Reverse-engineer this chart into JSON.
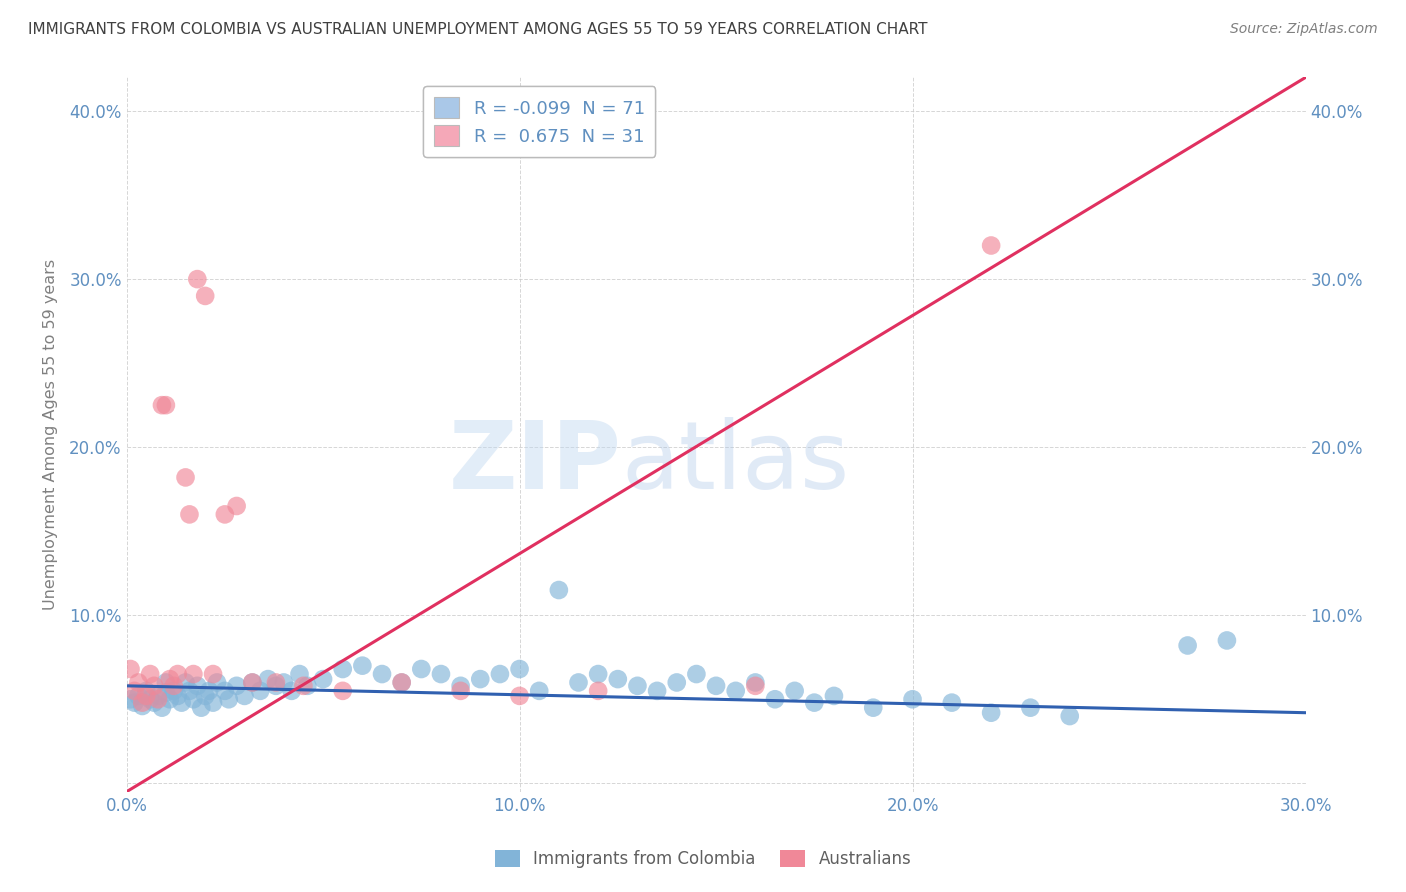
{
  "title": "IMMIGRANTS FROM COLOMBIA VS AUSTRALIAN UNEMPLOYMENT AMONG AGES 55 TO 59 YEARS CORRELATION CHART",
  "source": "Source: ZipAtlas.com",
  "ylabel": "Unemployment Among Ages 55 to 59 years",
  "xlim": [
    0.0,
    0.3
  ],
  "ylim": [
    -0.005,
    0.42
  ],
  "xtick_vals": [
    0.0,
    0.1,
    0.2,
    0.3
  ],
  "ytick_vals": [
    0.0,
    0.1,
    0.2,
    0.3,
    0.4
  ],
  "legend": [
    {
      "label": "R = -0.099  N = 71",
      "color": "#aac8e8"
    },
    {
      "label": "R =  0.675  N = 31",
      "color": "#f5a8b8"
    }
  ],
  "bottom_legend": [
    {
      "label": "Immigrants from Colombia",
      "color": "#82b4d8"
    },
    {
      "label": "Australians",
      "color": "#f08898"
    }
  ],
  "blue_scatter_x": [
    0.001,
    0.002,
    0.003,
    0.004,
    0.005,
    0.006,
    0.007,
    0.008,
    0.009,
    0.01,
    0.01,
    0.011,
    0.012,
    0.013,
    0.014,
    0.015,
    0.016,
    0.017,
    0.018,
    0.019,
    0.02,
    0.021,
    0.022,
    0.023,
    0.025,
    0.026,
    0.028,
    0.03,
    0.032,
    0.034,
    0.036,
    0.038,
    0.04,
    0.042,
    0.044,
    0.046,
    0.05,
    0.055,
    0.06,
    0.065,
    0.07,
    0.075,
    0.08,
    0.085,
    0.09,
    0.095,
    0.1,
    0.105,
    0.11,
    0.115,
    0.12,
    0.125,
    0.13,
    0.135,
    0.14,
    0.145,
    0.15,
    0.155,
    0.16,
    0.165,
    0.17,
    0.175,
    0.18,
    0.19,
    0.2,
    0.21,
    0.22,
    0.23,
    0.24,
    0.27,
    0.28
  ],
  "blue_scatter_y": [
    0.05,
    0.048,
    0.052,
    0.046,
    0.055,
    0.05,
    0.048,
    0.052,
    0.045,
    0.054,
    0.06,
    0.05,
    0.055,
    0.052,
    0.048,
    0.06,
    0.055,
    0.05,
    0.058,
    0.045,
    0.052,
    0.055,
    0.048,
    0.06,
    0.055,
    0.05,
    0.058,
    0.052,
    0.06,
    0.055,
    0.062,
    0.058,
    0.06,
    0.055,
    0.065,
    0.058,
    0.062,
    0.068,
    0.07,
    0.065,
    0.06,
    0.068,
    0.065,
    0.058,
    0.062,
    0.065,
    0.068,
    0.055,
    0.115,
    0.06,
    0.065,
    0.062,
    0.058,
    0.055,
    0.06,
    0.065,
    0.058,
    0.055,
    0.06,
    0.05,
    0.055,
    0.048,
    0.052,
    0.045,
    0.05,
    0.048,
    0.042,
    0.045,
    0.04,
    0.082,
    0.085
  ],
  "pink_scatter_x": [
    0.001,
    0.002,
    0.003,
    0.004,
    0.005,
    0.006,
    0.007,
    0.008,
    0.009,
    0.01,
    0.011,
    0.012,
    0.013,
    0.015,
    0.016,
    0.017,
    0.018,
    0.02,
    0.022,
    0.025,
    0.028,
    0.032,
    0.038,
    0.045,
    0.055,
    0.07,
    0.085,
    0.1,
    0.12,
    0.16,
    0.22
  ],
  "pink_scatter_y": [
    0.068,
    0.055,
    0.06,
    0.048,
    0.052,
    0.065,
    0.058,
    0.05,
    0.225,
    0.225,
    0.062,
    0.058,
    0.065,
    0.182,
    0.16,
    0.065,
    0.3,
    0.29,
    0.065,
    0.16,
    0.165,
    0.06,
    0.06,
    0.058,
    0.055,
    0.06,
    0.055,
    0.052,
    0.055,
    0.058,
    0.32
  ],
  "blue_line_x": [
    0.0,
    0.3
  ],
  "blue_line_y": [
    0.058,
    0.042
  ],
  "pink_line_x": [
    0.0,
    0.3
  ],
  "pink_line_y": [
    -0.005,
    0.42
  ],
  "watermark_zip": "ZIP",
  "watermark_atlas": "atlas",
  "blue_color": "#82b4d8",
  "pink_color": "#f08898",
  "blue_line_color": "#3060b0",
  "pink_line_color": "#e03060",
  "bg_color": "#ffffff",
  "grid_color": "#cccccc",
  "title_color": "#404040",
  "axis_color": "#6090c0"
}
